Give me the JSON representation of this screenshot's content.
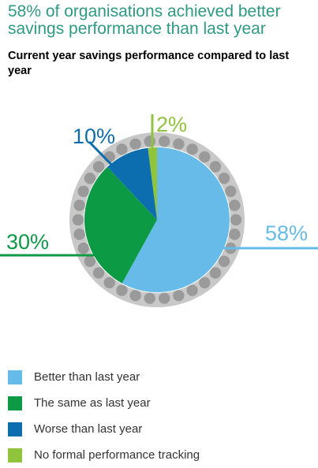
{
  "title": "58% of organisations achieved better savings performance than last year",
  "subtitle": "Current year savings performance compared to last year",
  "colors": {
    "ring": "#c8c8c8",
    "dots": "#9a9a9a"
  },
  "chart_data": {
    "type": "pie",
    "series": [
      {
        "name": "Better than last year",
        "value": 58,
        "label": "58%",
        "color": "#67bbe8"
      },
      {
        "name": "The same as last year",
        "value": 30,
        "label": "30%",
        "color": "#0d9a45"
      },
      {
        "name": "Worse than last year",
        "value": 10,
        "label": "10%",
        "color": "#0c6eae"
      },
      {
        "name": "No formal performance tracking",
        "value": 2,
        "label": "2%",
        "color": "#8fc43c"
      }
    ],
    "legend_position": "bottom"
  }
}
